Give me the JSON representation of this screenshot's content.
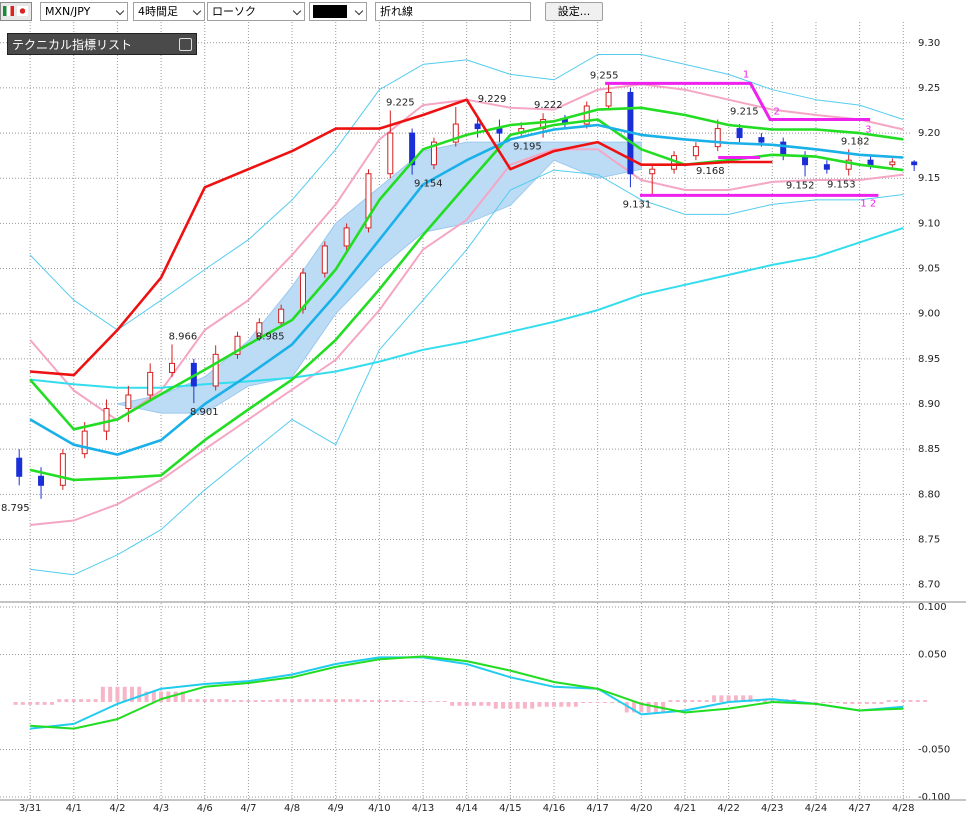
{
  "toolbar": {
    "pair": "MXN/JPY",
    "timeframe": "4時間足",
    "chart_style": "ローソク",
    "drawing_tool": "折れ線",
    "settings": "設定...",
    "indicator_list": "テクニカル指標リスト"
  },
  "chart_data": [
    {
      "type": "candlestick",
      "categories": [
        "3/31",
        "4/1",
        "4/2",
        "4/3",
        "4/6",
        "4/7",
        "4/8",
        "4/9",
        "4/10",
        "4/13",
        "4/14",
        "4/15",
        "4/16",
        "4/17",
        "4/20",
        "4/21",
        "4/22",
        "4/23",
        "4/24",
        "4/27",
        "4/28"
      ],
      "xlim": [
        -0.69,
        20.2
      ],
      "ylim": [
        8.683,
        9.323
      ],
      "yticks": [
        {
          "value": 8.7,
          "label": "8.70"
        },
        8.75,
        {
          "value": 8.8,
          "label": "8.80"
        },
        8.85,
        {
          "value": 8.9,
          "label": "8.90"
        },
        8.95,
        {
          "value": 9.0,
          "label": "9.00"
        },
        9.05,
        {
          "value": 9.1,
          "label": "9.10"
        },
        9.15,
        {
          "value": 9.2,
          "label": "9.20"
        },
        9.25,
        {
          "value": 9.3,
          "label": "9.30"
        }
      ],
      "grid": true,
      "candles": {
        "up_color": "#d42020",
        "down_color": "#1a2fd8",
        "x": [
          -0.25,
          0.25,
          0.75,
          1.25,
          1.75,
          2.25,
          2.75,
          3.25,
          3.75,
          4.25,
          4.75,
          5.25,
          5.75,
          6.25,
          6.75,
          7.25,
          7.75,
          8.25,
          8.75,
          9.25,
          9.75,
          10.25,
          10.75,
          11.25,
          11.75,
          12.25,
          12.75,
          13.25,
          13.75,
          14.25,
          14.75,
          15.25,
          15.75,
          16.25,
          16.75,
          17.25,
          17.75,
          18.25,
          18.75,
          19.25,
          19.75,
          20.25
        ],
        "open": [
          8.84,
          8.82,
          8.81,
          8.845,
          8.87,
          8.895,
          8.91,
          8.935,
          8.945,
          8.92,
          8.955,
          8.975,
          8.99,
          9.005,
          9.045,
          9.075,
          9.095,
          9.155,
          9.2,
          9.165,
          9.19,
          9.21,
          9.205,
          9.2,
          9.205,
          9.215,
          9.21,
          9.23,
          9.245,
          9.155,
          9.16,
          9.175,
          9.185,
          9.205,
          9.195,
          9.19,
          9.175,
          9.165,
          9.16,
          9.17,
          9.165,
          9.168
        ],
        "high": [
          8.85,
          8.83,
          8.85,
          8.88,
          8.905,
          8.92,
          8.945,
          8.966,
          8.95,
          8.965,
          8.98,
          8.995,
          9.01,
          9.05,
          9.08,
          9.1,
          9.16,
          9.225,
          9.205,
          9.195,
          9.229,
          9.22,
          9.215,
          9.212,
          9.222,
          9.22,
          9.235,
          9.255,
          9.25,
          9.165,
          9.18,
          9.19,
          9.215,
          9.21,
          9.2,
          9.195,
          9.18,
          9.17,
          9.182,
          9.175,
          9.172,
          9.17
        ],
        "low": [
          8.81,
          8.795,
          8.805,
          8.84,
          8.86,
          8.88,
          8.905,
          8.93,
          8.901,
          8.915,
          8.95,
          8.97,
          8.985,
          9.0,
          9.04,
          9.07,
          9.09,
          9.15,
          9.154,
          9.16,
          9.185,
          9.195,
          9.19,
          9.195,
          9.195,
          9.205,
          9.205,
          9.225,
          9.14,
          9.131,
          9.155,
          9.17,
          9.18,
          9.19,
          9.185,
          9.17,
          9.152,
          9.155,
          9.153,
          9.16,
          9.16,
          9.158
        ],
        "close": [
          8.82,
          8.81,
          8.845,
          8.87,
          8.895,
          8.91,
          8.935,
          8.945,
          8.92,
          8.955,
          8.975,
          8.99,
          9.005,
          9.045,
          9.075,
          9.095,
          9.155,
          9.2,
          9.165,
          9.19,
          9.21,
          9.205,
          9.2,
          9.205,
          9.215,
          9.21,
          9.23,
          9.245,
          9.155,
          9.16,
          9.175,
          9.185,
          9.205,
          9.195,
          9.19,
          9.175,
          9.165,
          9.16,
          9.17,
          9.165,
          9.168,
          9.165
        ]
      },
      "cloud": {
        "color": "#bcdcf6",
        "upper": [
          null,
          null,
          8.9,
          8.91,
          8.93,
          8.97,
          9.03,
          9.1,
          9.14,
          9.18,
          9.19,
          9.19,
          9.19,
          9.19,
          9.19,
          null,
          null,
          null,
          null,
          null,
          null
        ],
        "lower": [
          null,
          null,
          8.9,
          8.89,
          8.89,
          8.92,
          8.93,
          9.0,
          9.05,
          9.09,
          9.1,
          9.12,
          9.17,
          9.15,
          9.16,
          null,
          null,
          null,
          null,
          null,
          null
        ]
      },
      "lines": [
        {
          "color": "#55ccee",
          "style": "thin",
          "values": [
            9.065,
            9.015,
            8.982,
            9.015,
            9.049,
            9.082,
            9.126,
            9.182,
            9.248,
            9.276,
            9.281,
            9.265,
            9.259,
            9.287,
            9.287,
            9.276,
            9.265,
            9.248,
            9.237,
            9.231,
            9.215
          ]
        },
        {
          "color": "#55ccee",
          "style": "thin",
          "values": [
            8.717,
            8.711,
            8.733,
            8.761,
            8.805,
            8.844,
            8.883,
            8.855,
            8.96,
            9.015,
            9.071,
            9.137,
            9.159,
            9.154,
            9.126,
            9.11,
            9.11,
            9.121,
            9.126,
            9.126,
            9.132
          ]
        },
        {
          "color": "#f4a6c4",
          "style": "medium",
          "values": [
            8.971,
            8.915,
            8.882,
            8.915,
            8.982,
            9.015,
            9.065,
            9.121,
            9.193,
            9.231,
            9.237,
            9.228,
            9.226,
            9.248,
            9.254,
            9.248,
            9.237,
            9.226,
            9.22,
            9.215,
            9.204
          ]
        },
        {
          "color": "#f4a6c4",
          "style": "medium",
          "values": [
            8.766,
            8.771,
            8.789,
            8.816,
            8.85,
            8.883,
            8.916,
            8.949,
            9.004,
            9.071,
            9.104,
            9.165,
            9.182,
            9.182,
            9.148,
            9.137,
            9.137,
            9.146,
            9.148,
            9.148,
            9.154
          ]
        },
        {
          "color": "#33ddee",
          "style": "medium",
          "values": [
            8.927,
            8.922,
            8.918,
            8.918,
            8.922,
            8.925,
            8.929,
            8.936,
            8.947,
            8.96,
            8.969,
            8.98,
            8.991,
            9.004,
            9.021,
            9.032,
            9.043,
            9.054,
            9.063,
            9.079,
            9.095
          ]
        },
        {
          "color": "#22dd22",
          "style": "bold",
          "values": [
            8.827,
            8.816,
            8.818,
            8.821,
            8.86,
            8.894,
            8.927,
            8.971,
            9.027,
            9.087,
            9.143,
            9.198,
            9.209,
            9.215,
            9.182,
            9.165,
            9.17,
            9.176,
            9.174,
            9.165,
            9.159
          ]
        },
        {
          "color": "#1ab0e8",
          "style": "bold",
          "values": [
            8.883,
            8.855,
            8.844,
            8.86,
            8.9,
            8.932,
            8.966,
            9.021,
            9.082,
            9.143,
            9.17,
            9.193,
            9.204,
            9.209,
            9.198,
            9.193,
            9.189,
            9.187,
            9.182,
            9.176,
            9.173
          ]
        },
        {
          "color": "#22dd22",
          "style": "bold",
          "values": [
            8.927,
            8.872,
            8.883,
            8.911,
            8.938,
            8.966,
            8.993,
            9.049,
            9.126,
            9.182,
            9.198,
            9.209,
            9.213,
            9.226,
            9.228,
            9.22,
            9.209,
            9.204,
            9.204,
            9.2,
            9.193
          ]
        },
        {
          "color": "#ee1111",
          "style": "bold",
          "values": [
            8.936,
            8.932,
            8.982,
            9.04,
            9.14,
            9.16,
            9.18,
            9.205,
            9.205,
            9.22,
            9.237,
            9.16,
            9.18,
            9.19,
            9.165,
            9.165,
            9.168,
            9.168,
            null,
            null,
            null
          ]
        }
      ],
      "high_labels": [
        {
          "x": 13.15,
          "value": 9.255
        },
        {
          "x": 8.48,
          "value": 9.225
        },
        {
          "x": 10.58,
          "value": 9.229
        },
        {
          "x": 11.87,
          "value": 9.222
        },
        {
          "x": 16.36,
          "value": 9.215
        },
        {
          "x": 18.9,
          "value": 9.182
        },
        {
          "x": 3.5,
          "value": 8.966
        }
      ],
      "low_labels": [
        {
          "x": 9.12,
          "value": 9.154
        },
        {
          "x": 11.39,
          "value": 9.195
        },
        {
          "x": 13.9,
          "value": 9.131
        },
        {
          "x": 15.58,
          "value": 9.168
        },
        {
          "x": 17.64,
          "value": 9.152
        },
        {
          "x": 18.58,
          "value": 9.153
        },
        {
          "x": 3.99,
          "value": 8.901
        },
        {
          "x": 5.5,
          "value": 8.985
        },
        {
          "x": -0.34,
          "value": 8.795
        }
      ],
      "trendlines": {
        "color": "#ee22ee",
        "lines": [
          [
            [
              13.17,
              9.255
            ],
            [
              16.5,
              9.255
            ],
            [
              16.95,
              9.215
            ],
            [
              19.24,
              9.215
            ]
          ],
          [
            [
              13.97,
              9.131
            ],
            [
              19.43,
              9.131
            ]
          ],
          [
            [
              15.76,
              9.173
            ],
            [
              16.72,
              9.173
            ]
          ]
        ],
        "labels": [
          {
            "text": "1",
            "x": 16.4,
            "y": 9.265
          },
          {
            "text": "2",
            "x": 17.1,
            "y": 9.224
          },
          {
            "text": "3",
            "x": 19.2,
            "y": 9.204
          },
          {
            "text": "1 2",
            "x": 19.2,
            "y": 9.122
          }
        ]
      }
    },
    {
      "type": "macd",
      "ylim": [
        -0.1,
        0.1
      ],
      "yticks": [
        {
          "value": -0.1,
          "label": "-0.100"
        },
        {
          "value": -0.05,
          "label": "-0.050"
        },
        {
          "value": 0.05,
          "label": "0.050"
        },
        {
          "value": 0.1,
          "label": "0.100"
        }
      ],
      "histogram": {
        "color": "#f7b6c8",
        "values": [
          -0.003,
          0.003,
          0.016,
          0.011,
          0.003,
          0.002,
          0.003,
          0.003,
          0.002,
          0.001,
          -0.004,
          -0.007,
          -0.005,
          0,
          -0.011,
          0.002,
          0.007,
          0.003,
          0,
          -0.002,
          0.002
        ]
      },
      "lines": [
        {
          "color": "#22ccee",
          "values": [
            -0.028,
            -0.023,
            -0.002,
            0.014,
            0.019,
            0.022,
            0.029,
            0.04,
            0.047,
            0.047,
            0.04,
            0.026,
            0.016,
            0.014,
            -0.013,
            -0.009,
            0,
            0.003,
            -0.002,
            -0.009,
            -0.005
          ]
        },
        {
          "color": "#22dd22",
          "values": [
            -0.025,
            -0.028,
            -0.018,
            0.003,
            0.016,
            0.02,
            0.026,
            0.037,
            0.045,
            0.048,
            0.043,
            0.033,
            0.021,
            0.014,
            -0.002,
            -0.011,
            -0.007,
            0,
            -0.002,
            -0.009,
            -0.007
          ]
        }
      ]
    }
  ]
}
